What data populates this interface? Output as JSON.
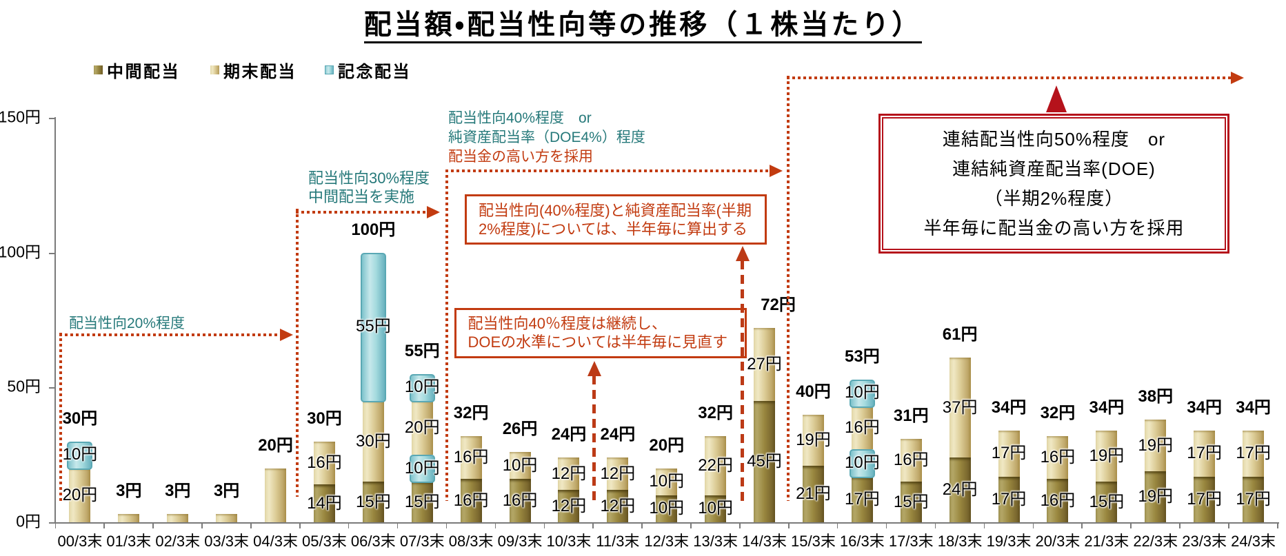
{
  "title": "配当額・配当性向等の推移（１株当たり）",
  "legend": [
    {
      "key": "interim",
      "label": "中間配当"
    },
    {
      "key": "yearend",
      "label": "期末配当"
    },
    {
      "key": "commemorative",
      "label": "記念配当"
    }
  ],
  "colors": {
    "interim": "#97853f",
    "yearend": "#dccc96",
    "commemorative": "#a4dade",
    "teal_text": "#26797a",
    "red_line": "#c23b10",
    "big_box_border": "#b5121b",
    "axis": "#7a7a7a"
  },
  "y_axis": {
    "unit": "円",
    "max": 150,
    "ticks": [
      {
        "value": 0,
        "label": "0円"
      },
      {
        "value": 50,
        "label": "50円"
      },
      {
        "value": 100,
        "label": "100円"
      },
      {
        "value": 150,
        "label": "150円"
      }
    ]
  },
  "chart_data": {
    "type": "bar",
    "stacked": true,
    "unit": "円",
    "ylim": [
      0,
      150
    ],
    "xlabel": "",
    "ylabel": "",
    "legend_position": "top-left",
    "grid": false,
    "series_names": [
      "中間配当",
      "期末配当",
      "記念配当"
    ],
    "categories": [
      "00/3末",
      "01/3末",
      "02/3末",
      "03/3末",
      "04/3末",
      "05/3末",
      "06/3末",
      "07/3末",
      "08/3末",
      "09/3末",
      "10/3末",
      "11/3末",
      "12/3末",
      "13/3末",
      "14/3末",
      "15/3末",
      "16/3末",
      "17/3末",
      "18/3末",
      "19/3末",
      "20/3末",
      "21/3末",
      "22/3末",
      "23/3末",
      "24/3末"
    ],
    "bars": [
      {
        "category": "00/3末",
        "total": 30,
        "total_label": "30円",
        "segments": [
          {
            "series": "yearend",
            "value": 20,
            "label": "20円"
          },
          {
            "series": "commemorative",
            "value": 10,
            "label": "10円"
          }
        ]
      },
      {
        "category": "01/3末",
        "total": 3,
        "total_label": "3円",
        "segments": [
          {
            "series": "yearend",
            "value": 3
          }
        ]
      },
      {
        "category": "02/3末",
        "total": 3,
        "total_label": "3円",
        "segments": [
          {
            "series": "yearend",
            "value": 3
          }
        ]
      },
      {
        "category": "03/3末",
        "total": 3,
        "total_label": "3円",
        "segments": [
          {
            "series": "yearend",
            "value": 3
          }
        ]
      },
      {
        "category": "04/3末",
        "total": 20,
        "total_label": "20円",
        "segments": [
          {
            "series": "yearend",
            "value": 20
          }
        ]
      },
      {
        "category": "05/3末",
        "total": 30,
        "total_label": "30円",
        "segments": [
          {
            "series": "interim",
            "value": 14,
            "label": "14円"
          },
          {
            "series": "yearend",
            "value": 16,
            "label": "16円"
          }
        ]
      },
      {
        "category": "06/3末",
        "total": 100,
        "total_label": "100円",
        "segments": [
          {
            "series": "interim",
            "value": 15,
            "label": "15円"
          },
          {
            "series": "yearend",
            "value": 30,
            "label": "30円"
          },
          {
            "series": "commemorative",
            "value": 55,
            "label": "55円"
          }
        ]
      },
      {
        "category": "07/3末",
        "total": 55,
        "total_label": "55円",
        "segments": [
          {
            "series": "interim",
            "value": 15,
            "label": "15円"
          },
          {
            "series": "commemorative",
            "value": 10,
            "label": "10円"
          },
          {
            "series": "yearend",
            "value": 20,
            "label": "20円"
          },
          {
            "series": "commemorative",
            "value": 10,
            "label": "10円"
          }
        ]
      },
      {
        "category": "08/3末",
        "total": 32,
        "total_label": "32円",
        "segments": [
          {
            "series": "interim",
            "value": 16,
            "label": "16円"
          },
          {
            "series": "yearend",
            "value": 16,
            "label": "16円"
          }
        ]
      },
      {
        "category": "09/3末",
        "total": 26,
        "total_label": "26円",
        "segments": [
          {
            "series": "interim",
            "value": 16,
            "label": "16円"
          },
          {
            "series": "yearend",
            "value": 10,
            "label": "10円"
          }
        ]
      },
      {
        "category": "10/3末",
        "total": 24,
        "total_label": "24円",
        "segments": [
          {
            "series": "interim",
            "value": 12,
            "label": "12円"
          },
          {
            "series": "yearend",
            "value": 12,
            "label": "12円"
          }
        ]
      },
      {
        "category": "11/3末",
        "total": 24,
        "total_label": "24円",
        "segments": [
          {
            "series": "interim",
            "value": 12,
            "label": "12円"
          },
          {
            "series": "yearend",
            "value": 12,
            "label": "12円"
          }
        ]
      },
      {
        "category": "12/3末",
        "total": 20,
        "total_label": "20円",
        "segments": [
          {
            "series": "interim",
            "value": 10,
            "label": "10円"
          },
          {
            "series": "yearend",
            "value": 10,
            "label": "10円"
          }
        ]
      },
      {
        "category": "13/3末",
        "total": 32,
        "total_label": "32円",
        "segments": [
          {
            "series": "interim",
            "value": 10,
            "label": "10円"
          },
          {
            "series": "yearend",
            "value": 22,
            "label": "22円"
          }
        ]
      },
      {
        "category": "14/3末",
        "total": 72,
        "total_label": "72円",
        "total_dx": 20,
        "segments": [
          {
            "series": "interim",
            "value": 45,
            "label": "45円"
          },
          {
            "series": "yearend",
            "value": 27,
            "label": "27円"
          }
        ]
      },
      {
        "category": "15/3末",
        "total": 40,
        "total_label": "40円",
        "segments": [
          {
            "series": "interim",
            "value": 21,
            "label": "21円"
          },
          {
            "series": "yearend",
            "value": 19,
            "label": "19円"
          }
        ]
      },
      {
        "category": "16/3末",
        "total": 53,
        "total_label": "53円",
        "segments": [
          {
            "series": "interim",
            "value": 17,
            "label": "17円"
          },
          {
            "series": "commemorative",
            "value": 10,
            "label": "10円"
          },
          {
            "series": "yearend",
            "value": 16,
            "label": "16円"
          },
          {
            "series": "commemorative",
            "value": 10,
            "label": "10円"
          }
        ]
      },
      {
        "category": "17/3末",
        "total": 31,
        "total_label": "31円",
        "segments": [
          {
            "series": "interim",
            "value": 15,
            "label": "15円"
          },
          {
            "series": "yearend",
            "value": 16,
            "label": "16円"
          }
        ]
      },
      {
        "category": "18/3末",
        "total": 61,
        "total_label": "61円",
        "segments": [
          {
            "series": "interim",
            "value": 24,
            "label": "24円"
          },
          {
            "series": "yearend",
            "value": 37,
            "label": "37円"
          }
        ]
      },
      {
        "category": "19/3末",
        "total": 34,
        "total_label": "34円",
        "segments": [
          {
            "series": "interim",
            "value": 17,
            "label": "17円"
          },
          {
            "series": "yearend",
            "value": 17,
            "label": "17円"
          }
        ]
      },
      {
        "category": "20/3末",
        "total": 32,
        "total_label": "32円",
        "segments": [
          {
            "series": "interim",
            "value": 16,
            "label": "16円"
          },
          {
            "series": "yearend",
            "value": 16,
            "label": "16円"
          }
        ]
      },
      {
        "category": "21/3末",
        "total": 34,
        "total_label": "34円",
        "segments": [
          {
            "series": "interim",
            "value": 15,
            "label": "15円"
          },
          {
            "series": "yearend",
            "value": 19,
            "label": "19円"
          }
        ]
      },
      {
        "category": "22/3末",
        "total": 38,
        "total_label": "38円",
        "segments": [
          {
            "series": "interim",
            "value": 19,
            "label": "19円"
          },
          {
            "series": "yearend",
            "value": 19,
            "label": "19円"
          }
        ]
      },
      {
        "category": "23/3末",
        "total": 34,
        "total_label": "34円",
        "segments": [
          {
            "series": "interim",
            "value": 17,
            "label": "17円"
          },
          {
            "series": "yearend",
            "value": 17,
            "label": "17円"
          }
        ]
      },
      {
        "category": "24/3末",
        "total": 34,
        "total_label": "34円",
        "segments": [
          {
            "series": "interim",
            "value": 17,
            "label": "17円"
          },
          {
            "series": "yearend",
            "value": 17,
            "label": "17円"
          }
        ]
      }
    ]
  },
  "annotations": {
    "note_20pct": {
      "line1": "配当性向20%程度"
    },
    "note_30pct": {
      "line1": "配当性向30%程度",
      "line2": "中間配当を実施"
    },
    "note_40pct": {
      "line1": "配当性向40%程度　or",
      "line2": "純資産配当率（DOE4%）程度",
      "line3": "配当金の高い方を採用"
    },
    "box_calc": {
      "line1": "配当性向(40%程度)と純資産配当率(半期",
      "line2": "2%程度)については、半年毎に算出する"
    },
    "box_review": {
      "line1": "配当性向40％程度は継続し、",
      "line2": "DOEの水準については半年毎に見直す"
    },
    "box_policy": {
      "line1": "連結配当性向50%程度　or",
      "line2": "連結純資産配当率(DOE)",
      "line3": "（半期2%程度）",
      "line4": "半年毎に配当金の高い方を採用"
    }
  }
}
